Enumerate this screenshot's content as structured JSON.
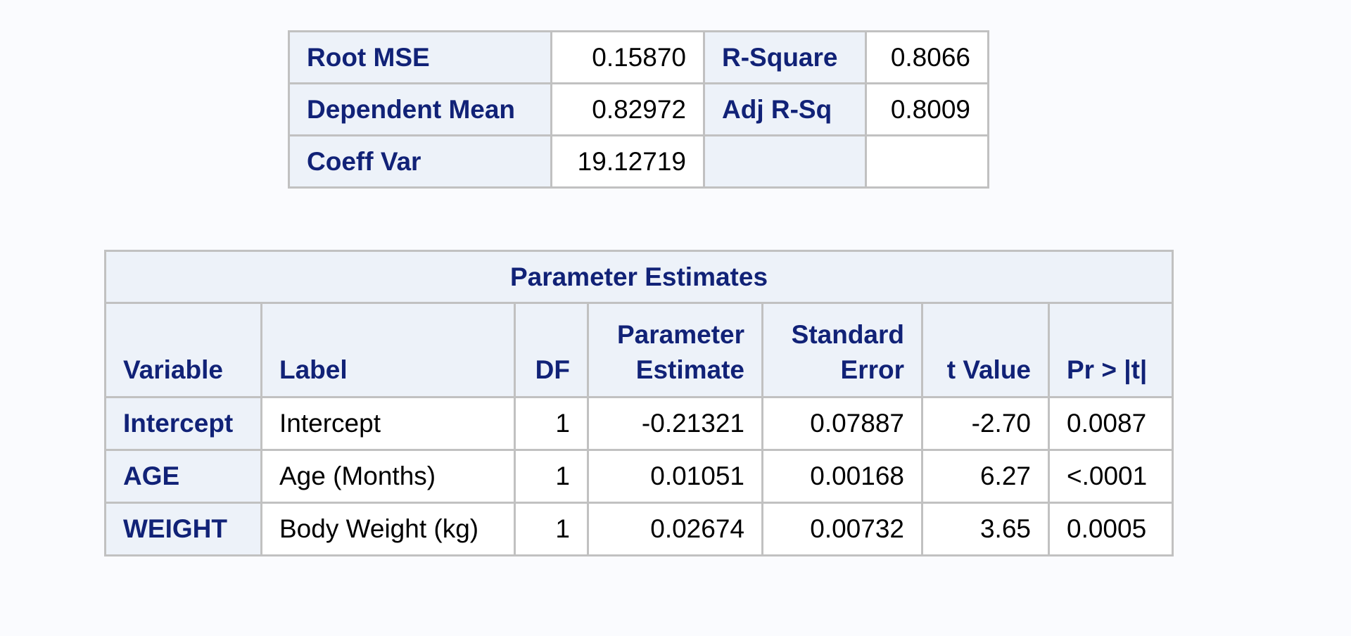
{
  "fit_statistics": {
    "rows": [
      {
        "label1": "Root MSE",
        "value1": "0.15870",
        "label2": "R-Square",
        "value2": "0.8066"
      },
      {
        "label1": "Dependent Mean",
        "value1": "0.82972",
        "label2": "Adj R-Sq",
        "value2": "0.8009"
      },
      {
        "label1": "Coeff Var",
        "value1": "19.12719",
        "label2": "",
        "value2": ""
      }
    ]
  },
  "parameter_estimates": {
    "title": "Parameter Estimates",
    "headers": {
      "variable": "Variable",
      "label": "Label",
      "df": "DF",
      "estimate_line1": "Parameter",
      "estimate_line2": "Estimate",
      "stderr_line1": "Standard",
      "stderr_line2": "Error",
      "t_value": "t Value",
      "p_value": "Pr > |t|"
    },
    "rows": [
      {
        "variable": "Intercept",
        "label": "Intercept",
        "df": "1",
        "estimate": "-0.21321",
        "stderr": "0.07887",
        "t": "-2.70",
        "p": "0.0087"
      },
      {
        "variable": "AGE",
        "label": "Age (Months)",
        "df": "1",
        "estimate": "0.01051",
        "stderr": "0.00168",
        "t": "6.27",
        "p": "<.0001"
      },
      {
        "variable": "WEIGHT",
        "label": "Body Weight (kg)",
        "df": "1",
        "estimate": "0.02674",
        "stderr": "0.00732",
        "t": "3.65",
        "p": "0.0005"
      }
    ]
  }
}
